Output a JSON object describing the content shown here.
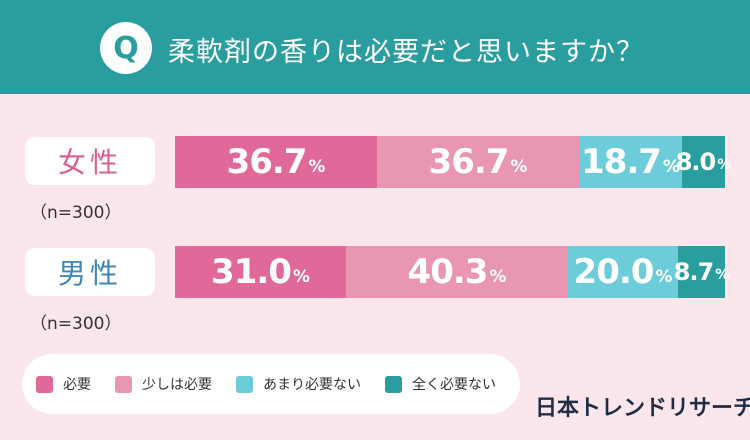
{
  "header": {
    "badge": "Q",
    "question": "柔軟剤の香りは必要だと思いますか？"
  },
  "rows": [
    {
      "label": "女性",
      "n": "（n=300）"
    },
    {
      "label": "男性",
      "n": "（n=300）"
    }
  ],
  "legend": [
    "必要",
    "少しは必要",
    "あまり必要ない",
    "全く必要ない"
  ],
  "brand": "日本トレンドリサーチ",
  "colors": {
    "header_bg": "#2a9e9f",
    "page_bg": "#fbe6ec",
    "series": [
      "#e0699a",
      "#e896b3",
      "#6dccd9",
      "#2a9e9f"
    ]
  },
  "chart_data": {
    "type": "bar",
    "orientation": "horizontal-stacked-100",
    "categories": [
      "女性",
      "男性"
    ],
    "series": [
      {
        "name": "必要",
        "values": [
          36.7,
          31.0
        ]
      },
      {
        "name": "少しは必要",
        "values": [
          36.7,
          40.3
        ]
      },
      {
        "name": "あまり必要ない",
        "values": [
          18.7,
          20.0
        ]
      },
      {
        "name": "全く必要ない",
        "values": [
          8.0,
          8.7
        ]
      }
    ],
    "value_labels": [
      [
        "36.7",
        "36.7",
        "18.7",
        "8.0"
      ],
      [
        "31.0",
        "40.3",
        "20.0",
        "8.7"
      ]
    ],
    "unit": "%",
    "title": "柔軟剤の香りは必要だと思いますか？",
    "legend_position": "bottom-left"
  }
}
